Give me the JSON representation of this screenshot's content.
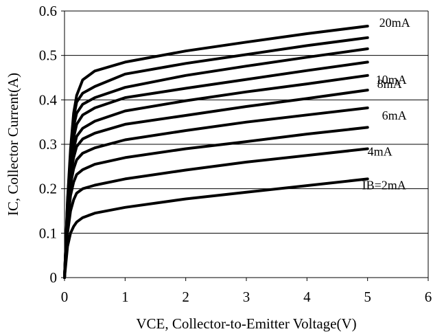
{
  "chart_data": {
    "type": "line",
    "title": "",
    "xlabel": "VCE, Collector-to-Emitter Voltage(V)",
    "ylabel": "IC, Collector Current(A)",
    "xlim": [
      0,
      6
    ],
    "ylim": [
      0,
      0.6
    ],
    "xticks": [
      0,
      1,
      2,
      3,
      4,
      5,
      6
    ],
    "yticks": [
      0,
      0.1,
      0.2,
      0.3,
      0.4,
      0.5,
      0.6
    ],
    "xtick_labels": [
      "0",
      "1",
      "2",
      "3",
      "4",
      "5",
      "6"
    ],
    "ytick_labels": [
      "0",
      "0.1",
      "0.2",
      "0.3",
      "0.4",
      "0.5",
      "0.6"
    ],
    "grid": "horizontal",
    "series": [
      {
        "name": "IB=2mA",
        "x": [
          0,
          0.05,
          0.1,
          0.15,
          0.2,
          0.3,
          0.5,
          1,
          2,
          3,
          4,
          5
        ],
        "y": [
          0,
          0.07,
          0.1,
          0.115,
          0.125,
          0.135,
          0.145,
          0.158,
          0.177,
          0.192,
          0.207,
          0.222
        ]
      },
      {
        "name": "4mA",
        "x": [
          0,
          0.05,
          0.1,
          0.15,
          0.2,
          0.3,
          0.5,
          1,
          2,
          3,
          4,
          5
        ],
        "y": [
          0,
          0.1,
          0.15,
          0.175,
          0.19,
          0.2,
          0.208,
          0.222,
          0.242,
          0.26,
          0.275,
          0.29
        ]
      },
      {
        "name": "",
        "x": [
          0,
          0.05,
          0.1,
          0.15,
          0.2,
          0.3,
          0.5,
          1,
          2,
          3,
          4,
          5
        ],
        "y": [
          0,
          0.12,
          0.185,
          0.215,
          0.232,
          0.243,
          0.255,
          0.27,
          0.29,
          0.306,
          0.323,
          0.338
        ]
      },
      {
        "name": "6mA",
        "x": [
          0,
          0.05,
          0.1,
          0.15,
          0.2,
          0.3,
          0.5,
          1,
          2,
          3,
          4,
          5
        ],
        "y": [
          0,
          0.13,
          0.21,
          0.245,
          0.265,
          0.28,
          0.292,
          0.31,
          0.331,
          0.35,
          0.366,
          0.382
        ]
      },
      {
        "name": "8mA",
        "x": [
          0,
          0.05,
          0.1,
          0.15,
          0.2,
          0.3,
          0.5,
          1,
          2,
          3,
          4,
          5
        ],
        "y": [
          0,
          0.14,
          0.23,
          0.27,
          0.295,
          0.312,
          0.325,
          0.345,
          0.365,
          0.385,
          0.403,
          0.422
        ]
      },
      {
        "name": "10mA",
        "x": [
          0,
          0.05,
          0.1,
          0.15,
          0.2,
          0.3,
          0.5,
          1,
          2,
          3,
          4,
          5
        ],
        "y": [
          0,
          0.15,
          0.245,
          0.29,
          0.318,
          0.336,
          0.352,
          0.375,
          0.398,
          0.418,
          0.436,
          0.455
        ]
      },
      {
        "name": "",
        "x": [
          0,
          0.05,
          0.1,
          0.15,
          0.2,
          0.3,
          0.5,
          1,
          2,
          3,
          4,
          5
        ],
        "y": [
          0,
          0.16,
          0.26,
          0.315,
          0.345,
          0.366,
          0.382,
          0.405,
          0.426,
          0.446,
          0.466,
          0.485
        ]
      },
      {
        "name": "",
        "x": [
          0,
          0.05,
          0.1,
          0.15,
          0.2,
          0.3,
          0.5,
          1,
          2,
          3,
          4,
          5
        ],
        "y": [
          0,
          0.165,
          0.27,
          0.34,
          0.37,
          0.39,
          0.405,
          0.428,
          0.455,
          0.476,
          0.496,
          0.515
        ]
      },
      {
        "name": "",
        "x": [
          0,
          0.05,
          0.1,
          0.15,
          0.2,
          0.3,
          0.5,
          1,
          2,
          3,
          4,
          5
        ],
        "y": [
          0,
          0.17,
          0.28,
          0.36,
          0.395,
          0.415,
          0.43,
          0.458,
          0.482,
          0.502,
          0.522,
          0.54
        ]
      },
      {
        "name": "20mA",
        "x": [
          0,
          0.05,
          0.1,
          0.15,
          0.2,
          0.3,
          0.5,
          1,
          2,
          3,
          4,
          5
        ],
        "y": [
          0,
          0.175,
          0.29,
          0.37,
          0.41,
          0.445,
          0.465,
          0.485,
          0.51,
          0.53,
          0.549,
          0.566
        ]
      }
    ]
  }
}
